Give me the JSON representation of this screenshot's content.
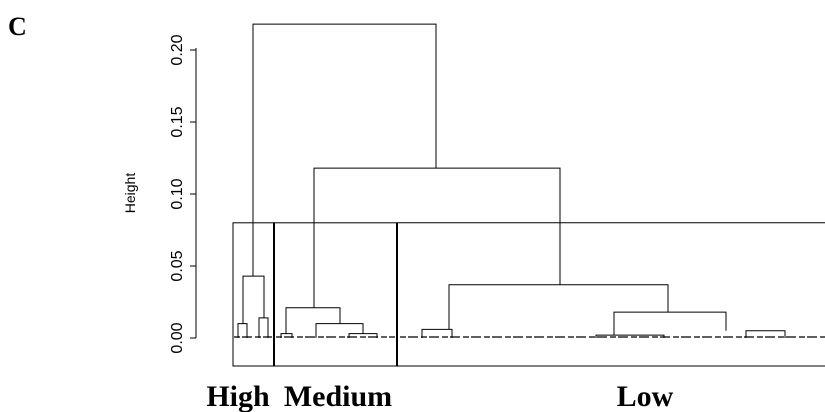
{
  "panel_label": "C",
  "chart_data": {
    "type": "dendrogram",
    "ylabel": "Height",
    "ylim": [
      0,
      0.22
    ],
    "yticks": [
      0.0,
      0.05,
      0.1,
      0.15,
      0.2
    ],
    "ytick_labels": [
      "0.00",
      "0.05",
      "0.10",
      "0.15",
      "0.20"
    ],
    "cut_height": 0.08,
    "clusters": [
      {
        "name": "High"
      },
      {
        "name": "Medium"
      },
      {
        "name": "Low"
      }
    ],
    "merges": [
      {
        "id": "high_sub_a",
        "left": "leaf",
        "right": "leaf",
        "height": 0.01
      },
      {
        "id": "high_sub_b",
        "left": "leaf",
        "right": "leaf",
        "height": 0.014
      },
      {
        "id": "high",
        "left": "high_sub_a",
        "right": "high_sub_b",
        "height": 0.043
      },
      {
        "id": "med_sub_a",
        "left": "leaf",
        "right": "leaf",
        "height": 0.003
      },
      {
        "id": "med_sub_b",
        "left": "leaf",
        "right": "leaf",
        "height": 0.003
      },
      {
        "id": "med_sub_c",
        "left": "med_sub_b",
        "right": "leaf",
        "height": 0.01
      },
      {
        "id": "medium",
        "left": "med_sub_a",
        "right": "med_sub_c",
        "height": 0.021
      },
      {
        "id": "low_sub_a",
        "left": "leaf",
        "right": "leaf",
        "height": 0.006
      },
      {
        "id": "low_sub_b",
        "left": "leaf",
        "right": "leaf",
        "height": 0.002
      },
      {
        "id": "low_sub_c",
        "left": "leaf",
        "right": "leaf",
        "height": 0.005
      },
      {
        "id": "low_sub_d",
        "left": "low_sub_b",
        "right": "low_sub_c",
        "height": 0.018
      },
      {
        "id": "low",
        "left": "low_sub_a",
        "right": "low_sub_d",
        "height": 0.037
      },
      {
        "id": "medium_low",
        "left": "medium",
        "right": "low",
        "height": 0.118
      },
      {
        "id": "root",
        "left": "high",
        "right": "medium_low",
        "height": 0.218
      }
    ]
  }
}
